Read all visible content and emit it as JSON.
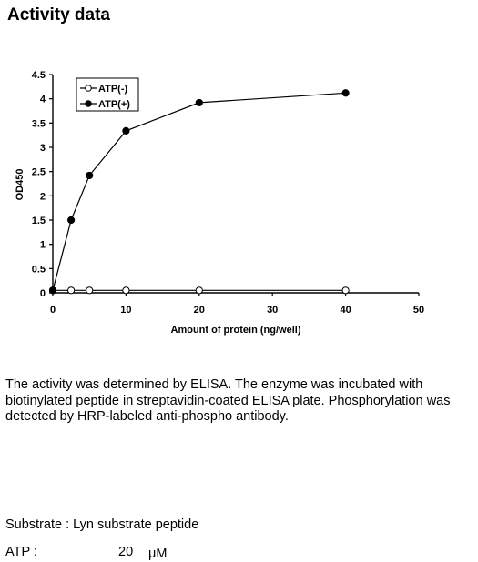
{
  "page": {
    "title": "Activity data",
    "description": "The activity was determined by ELISA. The enzyme was incubated with biotinylated peptide in streptavidin-coated ELISA plate. Phosphorylation was detected by HRP-labeled anti-phospho antibody.",
    "substrate_label": "Substrate : ",
    "substrate_value": "Lyn substrate peptide",
    "atp_label": "ATP :",
    "atp_value": "20",
    "atp_unit": "μM"
  },
  "chart_data": {
    "type": "line",
    "title": "",
    "xlabel": "Amount of protein (ng/well)",
    "ylabel": "OD450",
    "xlim": [
      0,
      50
    ],
    "ylim": [
      0,
      4.5
    ],
    "xticks": [
      0,
      10,
      20,
      30,
      40,
      50
    ],
    "yticks": [
      0,
      0.5,
      1,
      1.5,
      2,
      2.5,
      3,
      3.5,
      4,
      4.5
    ],
    "xtick_labels": [
      "0",
      "10",
      "20",
      "30",
      "40",
      "50"
    ],
    "ytick_labels": [
      "0",
      "0.5",
      "1",
      "1.5",
      "2",
      "2.5",
      "3",
      "3.5",
      "4",
      "4.5"
    ],
    "grid": false,
    "legend": "top-left",
    "series": [
      {
        "name": "ATP(-)",
        "marker": "open-circle",
        "x": [
          0,
          2.5,
          5,
          10,
          20,
          40
        ],
        "y": [
          0.05,
          0.05,
          0.05,
          0.05,
          0.05,
          0.05
        ]
      },
      {
        "name": "ATP(+)",
        "marker": "filled-circle",
        "x": [
          0,
          2.5,
          5,
          10,
          20,
          40
        ],
        "y": [
          0.05,
          1.5,
          2.42,
          3.34,
          3.92,
          4.12
        ]
      }
    ]
  }
}
